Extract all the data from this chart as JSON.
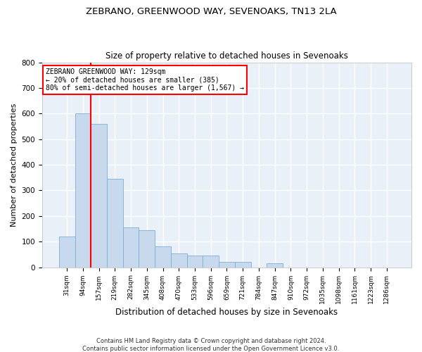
{
  "title": "ZEBRANO, GREENWOOD WAY, SEVENOAKS, TN13 2LA",
  "subtitle": "Size of property relative to detached houses in Sevenoaks",
  "xlabel": "Distribution of detached houses by size in Sevenoaks",
  "ylabel": "Number of detached properties",
  "bar_color": "#c8d9ee",
  "bar_edge_color": "#7bafd4",
  "background_color": "#eaf0f8",
  "grid_color": "#ffffff",
  "categories": [
    "31sqm",
    "94sqm",
    "157sqm",
    "219sqm",
    "282sqm",
    "345sqm",
    "408sqm",
    "470sqm",
    "533sqm",
    "596sqm",
    "659sqm",
    "721sqm",
    "784sqm",
    "847sqm",
    "910sqm",
    "972sqm",
    "1035sqm",
    "1098sqm",
    "1161sqm",
    "1223sqm",
    "1286sqm"
  ],
  "values": [
    120,
    600,
    560,
    345,
    155,
    145,
    80,
    55,
    45,
    45,
    20,
    20,
    0,
    15,
    0,
    0,
    0,
    0,
    0,
    0,
    0
  ],
  "ylim": [
    0,
    800
  ],
  "yticks": [
    0,
    100,
    200,
    300,
    400,
    500,
    600,
    700,
    800
  ],
  "property_label": "ZEBRANO GREENWOOD WAY: 129sqm",
  "annotation_line1": "← 20% of detached houses are smaller (385)",
  "annotation_line2": "80% of semi-detached houses are larger (1,567) →",
  "vline_x_index": 1.5,
  "footnote1": "Contains HM Land Registry data © Crown copyright and database right 2024.",
  "footnote2": "Contains public sector information licensed under the Open Government Licence v3.0."
}
